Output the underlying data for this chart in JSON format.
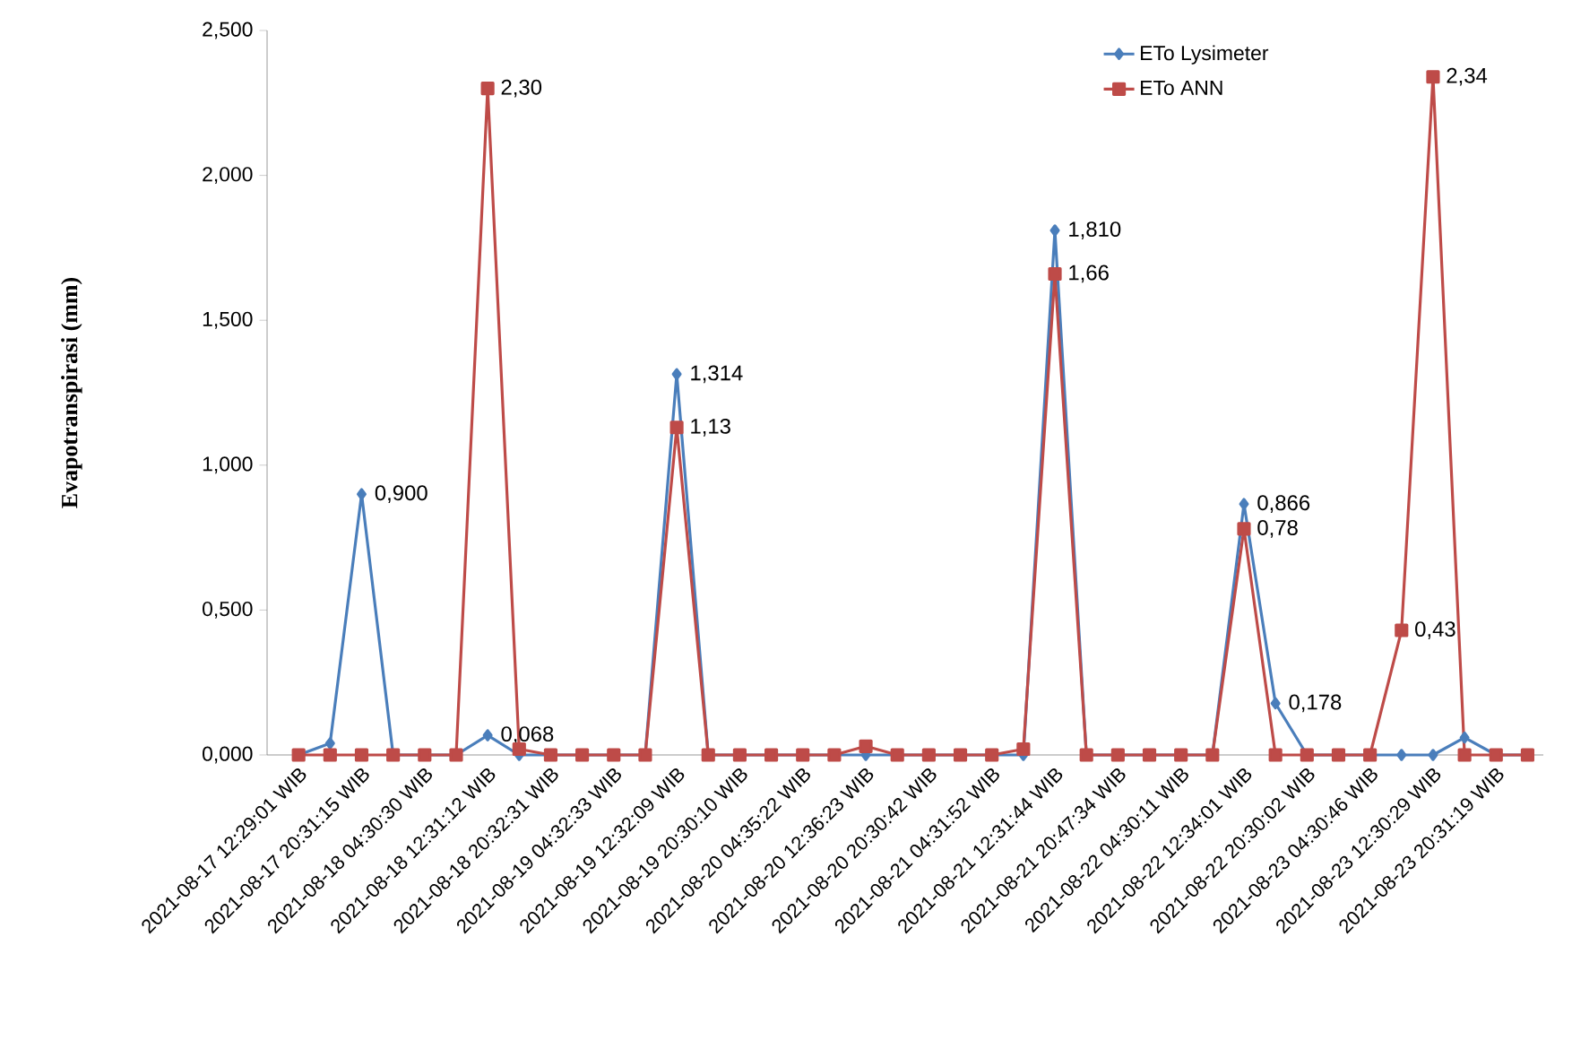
{
  "chart_data": {
    "type": "line",
    "ylabel": "Evapotranspirasi  (mm)",
    "categories": [
      "2021-08-17 12:29:01 WIB",
      null,
      "2021-08-17 20:31:15 WIB",
      null,
      "2021-08-18 04:30:30 WIB",
      null,
      "2021-08-18 12:31:12 WIB",
      null,
      "2021-08-18 20:32:31 WIB",
      null,
      "2021-08-19 04:32:33 WIB",
      null,
      "2021-08-19 12:32:09 WIB",
      null,
      "2021-08-19 20:30:10 WIB",
      null,
      "2021-08-20 04:35:22 WIB",
      null,
      "2021-08-20 12:36:23 WIB",
      null,
      "2021-08-20 20:30:42 WIB",
      null,
      "2021-08-21 04:31:52 WIB",
      null,
      "2021-08-21 12:31:44 WIB",
      null,
      "2021-08-21 20:47:34 WIB",
      null,
      "2021-08-22 04:30:11 WIB",
      null,
      "2021-08-22 12:34:01 WIB",
      null,
      "2021-08-22 20:30:02 WIB",
      null,
      "2021-08-23 04:30:46 WIB",
      null,
      "2021-08-23 12:30:29 WIB",
      null,
      "2021-08-23 20:31:19 WIB",
      null
    ],
    "series": [
      {
        "name": "ETo Lysimeter",
        "color": "#4a7ebb",
        "marker": "diamond",
        "values": [
          0,
          0.04,
          0.9,
          0,
          0,
          0,
          0.068,
          0,
          0,
          0,
          0,
          0,
          1.314,
          0,
          0,
          0,
          0,
          0,
          0,
          0,
          0,
          0,
          0,
          0,
          1.81,
          0,
          0,
          0,
          0,
          0,
          0.866,
          0.178,
          0,
          0,
          0,
          0,
          0,
          0.06,
          0,
          0
        ],
        "value_labels": [
          null,
          null,
          "0,900",
          null,
          null,
          null,
          "0,068",
          null,
          null,
          null,
          null,
          null,
          "1,314",
          null,
          null,
          null,
          null,
          null,
          null,
          null,
          null,
          null,
          null,
          null,
          "1,810",
          null,
          null,
          null,
          null,
          null,
          "0,866",
          "0,178",
          null,
          null,
          null,
          null,
          null,
          null,
          null,
          null
        ]
      },
      {
        "name": "ETo ANN",
        "color": "#be4b48",
        "marker": "square",
        "values": [
          0,
          0,
          0,
          0,
          0,
          0,
          2.3,
          0.02,
          0,
          0,
          0,
          0,
          1.13,
          0,
          0,
          0,
          0,
          0,
          0.03,
          0,
          0,
          0,
          0,
          0.02,
          1.66,
          0,
          0,
          0,
          0,
          0,
          0.78,
          0,
          0,
          0,
          0,
          0.43,
          2.34,
          0,
          0,
          0
        ],
        "value_labels": [
          null,
          null,
          null,
          null,
          null,
          null,
          "2,30",
          null,
          null,
          null,
          null,
          null,
          "1,13",
          null,
          null,
          null,
          null,
          null,
          null,
          null,
          null,
          null,
          null,
          null,
          "1,66",
          null,
          null,
          null,
          null,
          null,
          "0,78",
          null,
          null,
          null,
          null,
          "0,43",
          "2,34",
          null,
          null,
          null
        ]
      }
    ],
    "ylim": [
      0,
      2.5
    ],
    "yticks": [
      {
        "value": 0,
        "label": "0,000"
      },
      {
        "value": 0.5,
        "label": "0,500"
      },
      {
        "value": 1,
        "label": "1,000"
      },
      {
        "value": 1.5,
        "label": "1,500"
      },
      {
        "value": 2,
        "label": "2,000"
      },
      {
        "value": 2.5,
        "label": "2,500"
      }
    ],
    "legend": "top right",
    "grid": false,
    "line_style": "solid"
  }
}
